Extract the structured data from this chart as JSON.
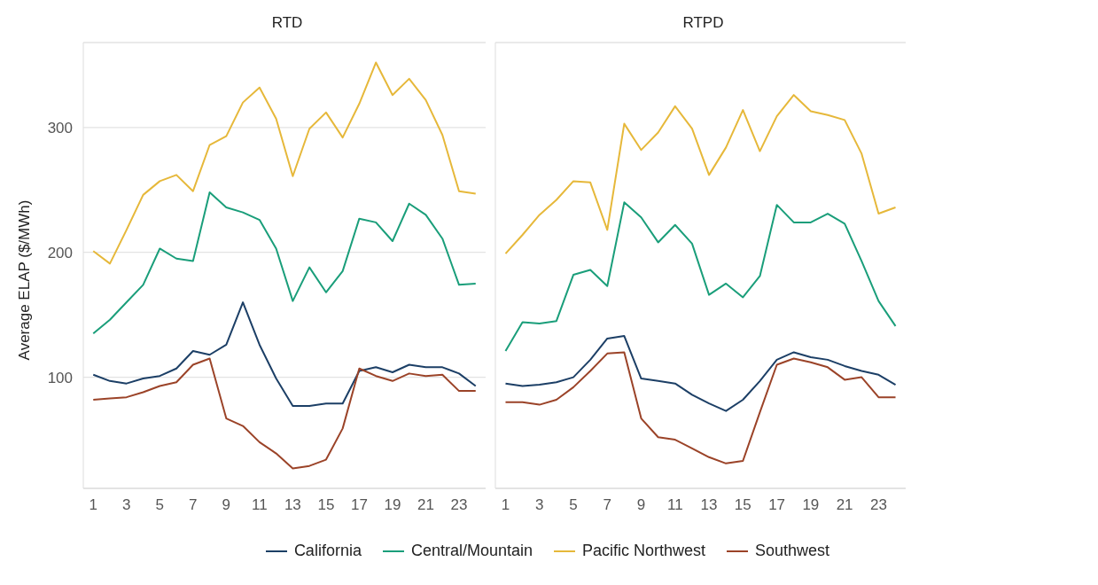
{
  "chart_data": [
    {
      "type": "line",
      "title": "RTD",
      "ylabel": "Average ELAP ($/MWh)",
      "x": [
        1,
        2,
        3,
        4,
        5,
        6,
        7,
        8,
        9,
        10,
        11,
        12,
        13,
        14,
        15,
        16,
        17,
        18,
        19,
        20,
        21,
        22,
        23,
        24
      ],
      "xlim": [
        0.4,
        24.6
      ],
      "xticks": [
        1,
        3,
        5,
        7,
        9,
        11,
        13,
        15,
        17,
        19,
        21,
        23
      ],
      "ylim": [
        11,
        368
      ],
      "yticks": [
        100,
        200,
        300
      ],
      "grid": "y",
      "legend": "bottom",
      "line_style": "solid",
      "series": [
        {
          "name": "California",
          "color": "#1c3f66",
          "values": [
            102,
            97,
            95,
            99,
            101,
            107,
            121,
            118,
            126,
            160,
            126,
            99,
            77,
            77,
            79,
            79,
            105,
            108,
            104,
            110,
            108,
            108,
            103,
            93
          ]
        },
        {
          "name": "Central/Mountain",
          "color": "#1a9e7a",
          "values": [
            135,
            146,
            160,
            174,
            203,
            195,
            193,
            248,
            236,
            232,
            226,
            203,
            161,
            188,
            168,
            185,
            227,
            224,
            209,
            239,
            230,
            211,
            174,
            175
          ]
        },
        {
          "name": "Pacific Northwest",
          "color": "#e6b83a",
          "values": [
            201,
            191,
            218,
            246,
            257,
            262,
            249,
            286,
            293,
            320,
            332,
            307,
            261,
            299,
            312,
            292,
            319,
            352,
            326,
            339,
            322,
            294,
            249,
            247
          ]
        },
        {
          "name": "Southwest",
          "color": "#9b4328",
          "values": [
            82,
            83,
            84,
            88,
            93,
            96,
            110,
            115,
            67,
            61,
            48,
            39,
            27,
            29,
            34,
            59,
            107,
            101,
            97,
            103,
            101,
            102,
            89,
            89
          ]
        }
      ]
    },
    {
      "type": "line",
      "title": "RTPD",
      "x": [
        1,
        2,
        3,
        4,
        5,
        6,
        7,
        8,
        9,
        10,
        11,
        12,
        13,
        14,
        15,
        16,
        17,
        18,
        19,
        20,
        21,
        22,
        23,
        24
      ],
      "xlim": [
        0.4,
        24.6
      ],
      "xticks": [
        1,
        3,
        5,
        7,
        9,
        11,
        13,
        15,
        17,
        19,
        21,
        23
      ],
      "ylim": [
        11,
        368
      ],
      "yticks": [
        100,
        200,
        300
      ],
      "grid": "y",
      "line_style": "solid",
      "tick_labels": "x",
      "series": [
        {
          "color": "#1c3f66",
          "values": [
            95,
            93,
            94,
            96,
            100,
            114,
            131,
            133,
            99,
            97,
            95,
            86,
            79,
            73,
            82,
            97,
            114,
            120,
            116,
            114,
            109,
            105,
            102,
            94
          ]
        },
        {
          "color": "#1a9e7a",
          "values": [
            121,
            144,
            143,
            145,
            182,
            186,
            173,
            240,
            228,
            208,
            222,
            207,
            166,
            175,
            164,
            181,
            238,
            224,
            224,
            231,
            223,
            193,
            161,
            141
          ]
        },
        {
          "color": "#e6b83a",
          "values": [
            199,
            214,
            230,
            242,
            257,
            256,
            218,
            303,
            282,
            296,
            317,
            299,
            262,
            284,
            314,
            281,
            309,
            326,
            313,
            310,
            306,
            279,
            231,
            236
          ]
        },
        {
          "color": "#9b4328",
          "values": [
            80,
            80,
            78,
            82,
            92,
            105,
            119,
            120,
            67,
            52,
            50,
            43,
            36,
            31,
            33,
            72,
            110,
            115,
            112,
            108,
            98,
            100,
            84,
            84
          ]
        }
      ]
    }
  ]
}
